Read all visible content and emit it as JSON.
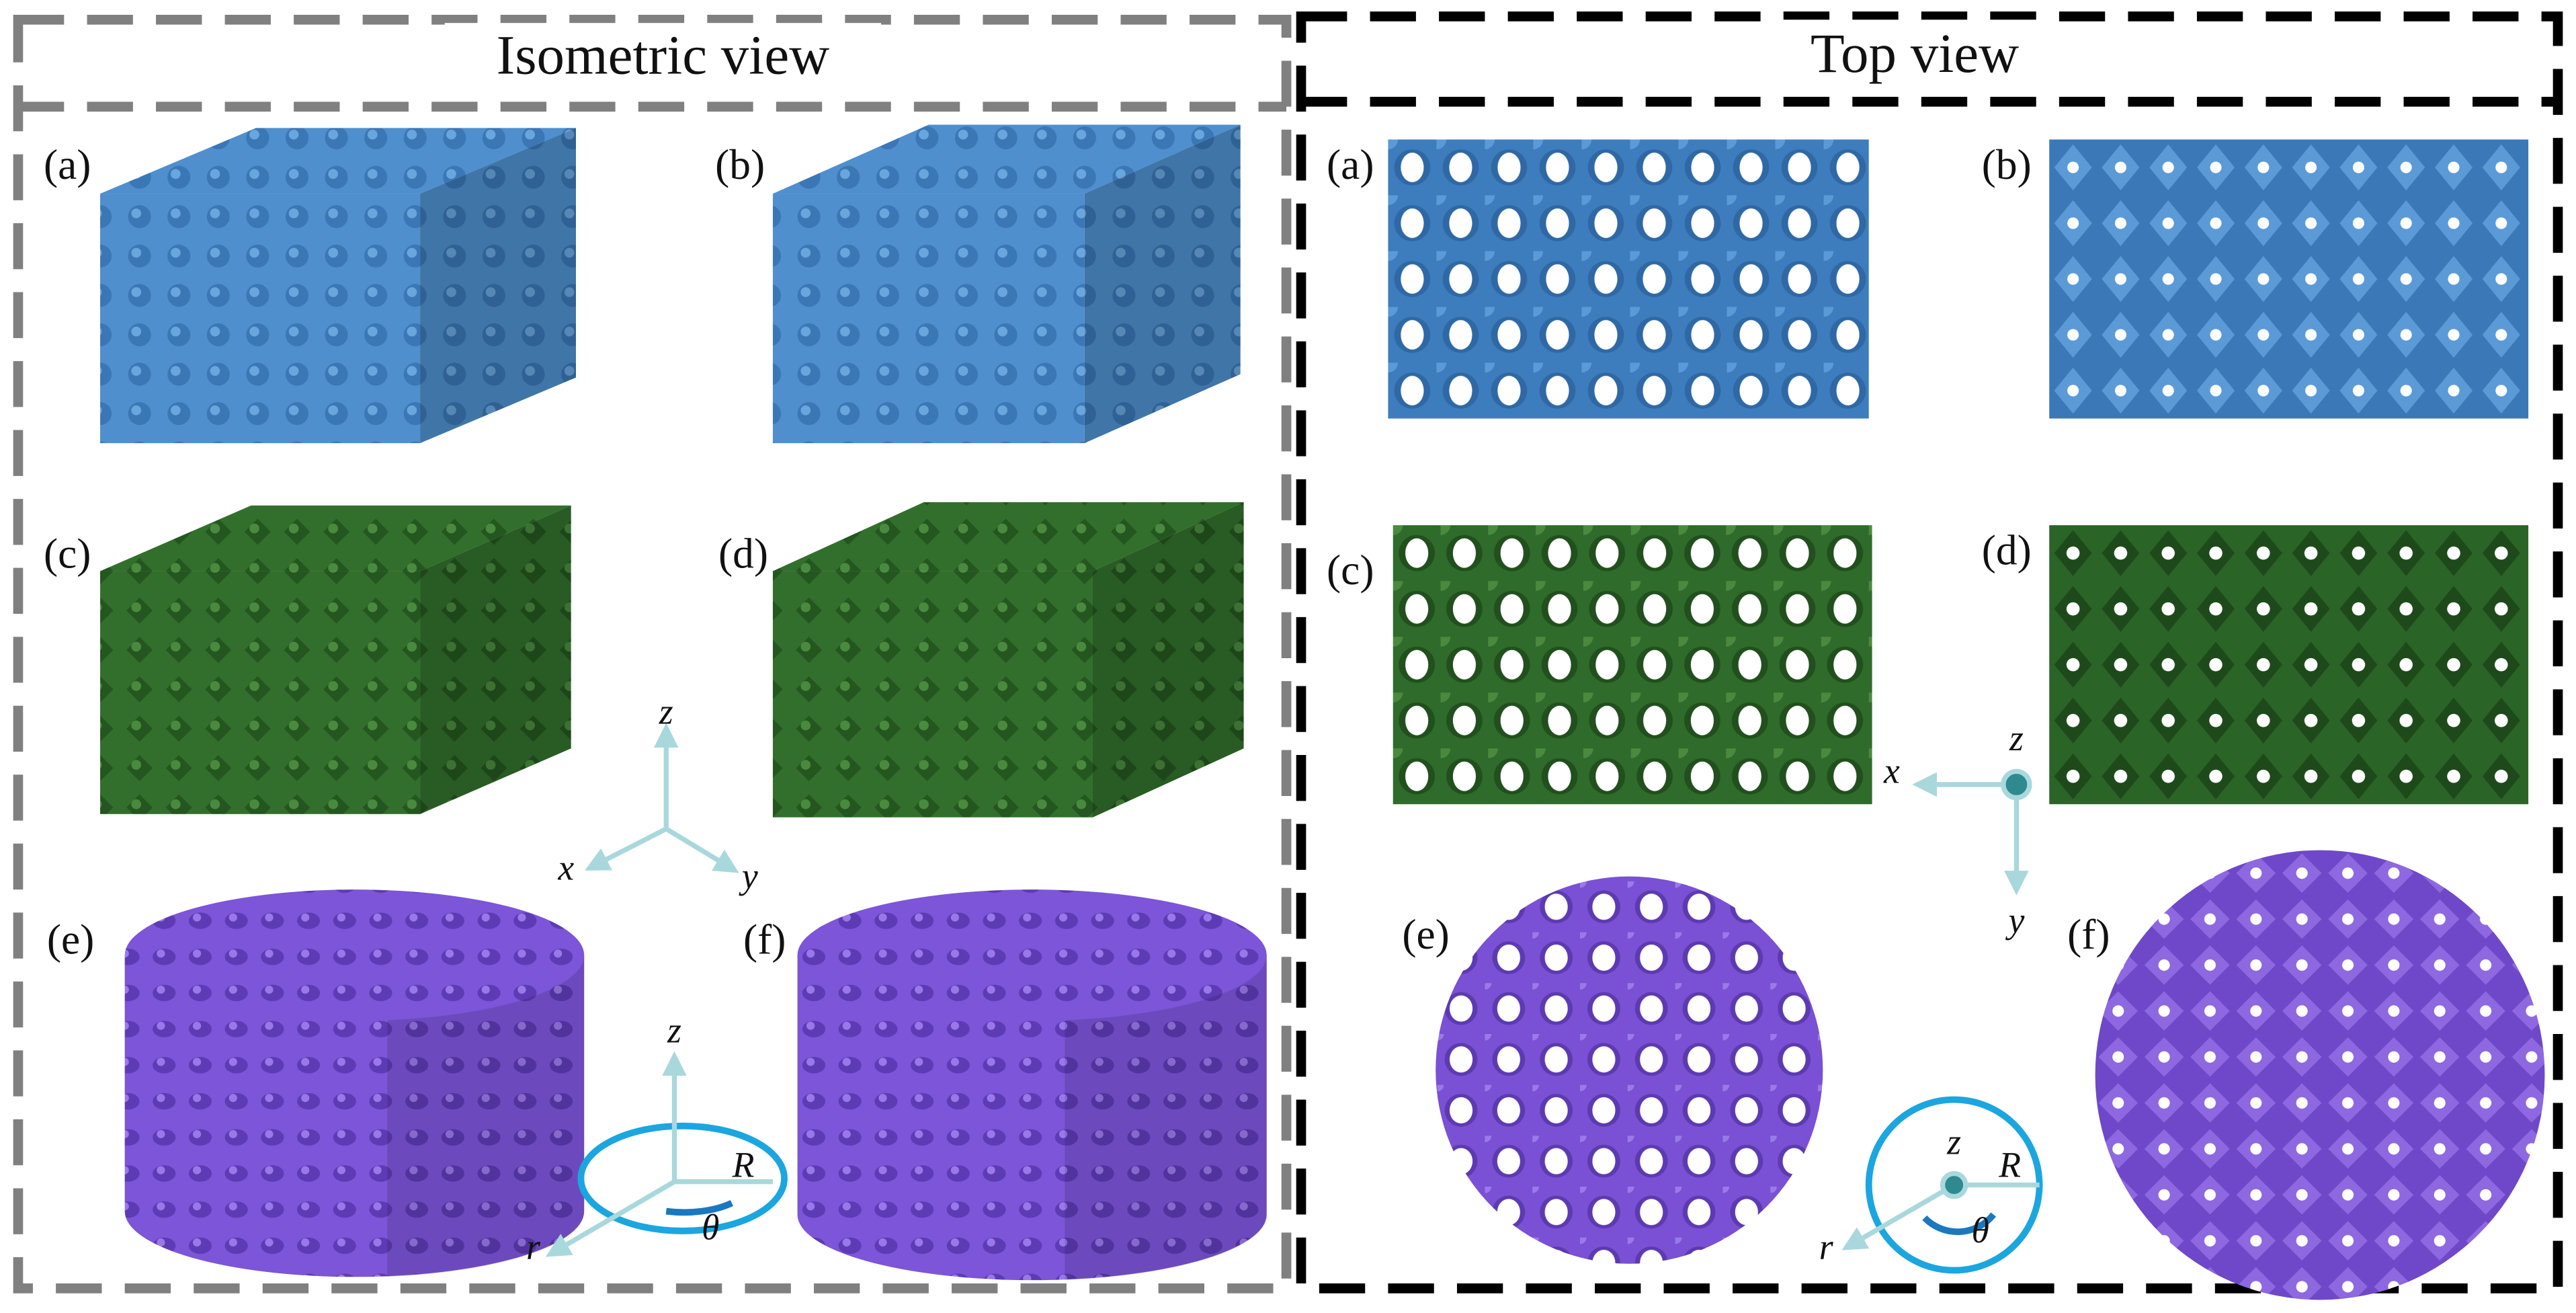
{
  "panels": [
    {
      "title": "Isometric view",
      "labels": [
        "(a)",
        "(b)",
        "(c)",
        "(d)",
        "(e)",
        "(f)"
      ],
      "cartesian_axes": {
        "x": "x",
        "y": "y",
        "z": "z"
      },
      "cylindrical_axes": {
        "z": "z",
        "r": "r",
        "R": "R",
        "theta": "θ"
      }
    },
    {
      "title": "Top view",
      "labels": [
        "(a)",
        "(b)",
        "(c)",
        "(d)",
        "(e)",
        "(f)"
      ],
      "cartesian_axes": {
        "x": "x",
        "y": "y",
        "z": "z"
      },
      "cylindrical_axes": {
        "z": "z",
        "r": "r",
        "R": "R",
        "theta": "θ"
      }
    }
  ]
}
